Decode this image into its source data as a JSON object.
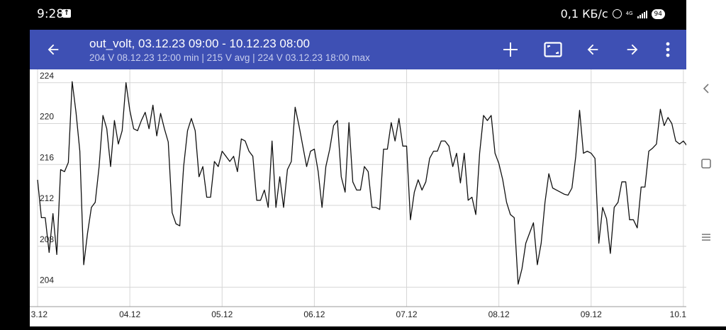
{
  "status_bar": {
    "time": "9:28",
    "network_speed": "0,1 КБ/с",
    "network_type": "4G",
    "battery": "94"
  },
  "toolbar": {
    "title": "out_volt, 03.12.23 09:00 - 10.12.23 08:00",
    "subtitle": "204 V 08.12.23 12:00 min | 215 V avg | 224 V 03.12.23 18:00 max",
    "icons": [
      "back-arrow-icon",
      "plus-icon",
      "fit-screen-icon",
      "arrow-left-icon",
      "arrow-right-icon",
      "more-vert-icon"
    ]
  },
  "chart_data": {
    "type": "line",
    "x_tick_labels": [
      "3.12",
      "04.12",
      "05.12",
      "06.12",
      "07.12",
      "08.12",
      "09.12",
      "10.1"
    ],
    "y_tick_labels": [
      "204",
      "208",
      "212",
      "216",
      "220",
      "224"
    ],
    "yticks": [
      204,
      208,
      212,
      216,
      220,
      224
    ],
    "ylim": [
      202.1,
      225.3
    ],
    "x_start_hour": 0,
    "x_end_hour": 168,
    "grid": true,
    "line_color": "#111111",
    "points": [
      [
        0,
        214.5
      ],
      [
        1,
        210.8
      ],
      [
        2,
        210.8
      ],
      [
        3,
        207.4
      ],
      [
        4,
        211.2
      ],
      [
        5,
        207.2
      ],
      [
        6,
        215.5
      ],
      [
        7,
        215.3
      ],
      [
        8,
        216.2
      ],
      [
        9,
        224.1
      ],
      [
        10,
        221.1
      ],
      [
        11,
        217.3
      ],
      [
        12,
        206.2
      ],
      [
        13,
        209.3
      ],
      [
        14,
        211.8
      ],
      [
        15,
        212.3
      ],
      [
        16,
        215.8
      ],
      [
        17,
        220.8
      ],
      [
        18,
        219.5
      ],
      [
        19,
        215.8
      ],
      [
        20,
        220.3
      ],
      [
        21,
        218.0
      ],
      [
        22,
        219.3
      ],
      [
        23,
        224.0
      ],
      [
        24,
        221.3
      ],
      [
        25,
        219.5
      ],
      [
        26,
        219.3
      ],
      [
        27,
        220.3
      ],
      [
        28,
        221.1
      ],
      [
        29,
        219.5
      ],
      [
        30,
        221.8
      ],
      [
        31,
        218.8
      ],
      [
        32,
        221.0
      ],
      [
        33,
        219.5
      ],
      [
        34,
        218.2
      ],
      [
        35,
        211.3
      ],
      [
        36,
        210.2
      ],
      [
        37,
        210.0
      ],
      [
        38,
        215.8
      ],
      [
        39,
        219.3
      ],
      [
        40,
        220.5
      ],
      [
        41,
        219.3
      ],
      [
        42,
        214.8
      ],
      [
        43,
        215.8
      ],
      [
        44,
        212.8
      ],
      [
        45,
        212.8
      ],
      [
        46,
        216.3
      ],
      [
        47,
        215.8
      ],
      [
        48,
        217.3
      ],
      [
        49,
        216.8
      ],
      [
        50,
        216.3
      ],
      [
        51,
        216.8
      ],
      [
        52,
        215.3
      ],
      [
        53,
        218.5
      ],
      [
        54,
        218.3
      ],
      [
        55,
        217.3
      ],
      [
        56,
        216.8
      ],
      [
        57,
        212.5
      ],
      [
        58,
        212.5
      ],
      [
        59,
        213.5
      ],
      [
        60,
        211.8
      ],
      [
        61,
        218.3
      ],
      [
        62,
        211.8
      ],
      [
        63,
        214.8
      ],
      [
        64,
        211.8
      ],
      [
        65,
        215.5
      ],
      [
        66,
        216.3
      ],
      [
        67,
        221.6
      ],
      [
        68,
        219.8
      ],
      [
        69,
        217.8
      ],
      [
        70,
        215.8
      ],
      [
        71,
        217.3
      ],
      [
        72,
        217.5
      ],
      [
        73,
        215.3
      ],
      [
        74,
        211.8
      ],
      [
        75,
        215.8
      ],
      [
        76,
        217.5
      ],
      [
        77,
        219.8
      ],
      [
        78,
        220.3
      ],
      [
        79,
        214.8
      ],
      [
        80,
        213.3
      ],
      [
        81,
        220.1
      ],
      [
        82,
        214.3
      ],
      [
        83,
        213.5
      ],
      [
        84,
        213.5
      ],
      [
        85,
        215.8
      ],
      [
        86,
        215.3
      ],
      [
        87,
        211.8
      ],
      [
        88,
        211.8
      ],
      [
        89,
        211.6
      ],
      [
        90,
        217.5
      ],
      [
        91,
        217.5
      ],
      [
        92,
        220.1
      ],
      [
        93,
        218.3
      ],
      [
        94,
        220.5
      ],
      [
        95,
        217.8
      ],
      [
        96,
        217.8
      ],
      [
        97,
        210.6
      ],
      [
        98,
        213.3
      ],
      [
        99,
        214.5
      ],
      [
        100,
        213.5
      ],
      [
        101,
        214.3
      ],
      [
        102,
        216.6
      ],
      [
        103,
        217.3
      ],
      [
        104,
        217.3
      ],
      [
        105,
        218.3
      ],
      [
        106,
        218.3
      ],
      [
        107,
        217.8
      ],
      [
        108,
        215.8
      ],
      [
        109,
        217.1
      ],
      [
        110,
        214.2
      ],
      [
        111,
        217.1
      ],
      [
        112,
        212.5
      ],
      [
        113,
        212.8
      ],
      [
        114,
        211.1
      ],
      [
        115,
        217.1
      ],
      [
        116,
        220.8
      ],
      [
        117,
        220.3
      ],
      [
        118,
        220.8
      ],
      [
        119,
        217.1
      ],
      [
        120,
        216.1
      ],
      [
        121,
        214.5
      ],
      [
        122,
        212.3
      ],
      [
        123,
        211.1
      ],
      [
        124,
        210.8
      ],
      [
        125,
        204.3
      ],
      [
        126,
        205.8
      ],
      [
        127,
        208.3
      ],
      [
        128,
        209.3
      ],
      [
        129,
        210.3
      ],
      [
        130,
        206.2
      ],
      [
        131,
        208.3
      ],
      [
        132,
        212.3
      ],
      [
        133,
        215.1
      ],
      [
        134,
        213.7
      ],
      [
        135,
        213.5
      ],
      [
        136,
        213.3
      ],
      [
        137,
        213.1
      ],
      [
        138,
        213.0
      ],
      [
        139,
        213.7
      ],
      [
        140,
        216.8
      ],
      [
        141,
        221.3
      ],
      [
        142,
        217.1
      ],
      [
        143,
        217.3
      ],
      [
        144,
        217.1
      ],
      [
        145,
        216.6
      ],
      [
        146,
        208.3
      ],
      [
        147,
        211.8
      ],
      [
        148,
        210.7
      ],
      [
        149,
        207.3
      ],
      [
        150,
        211.8
      ],
      [
        151,
        212.3
      ],
      [
        152,
        214.3
      ],
      [
        153,
        214.3
      ],
      [
        154,
        210.6
      ],
      [
        155,
        210.6
      ],
      [
        156,
        209.8
      ],
      [
        157,
        213.8
      ],
      [
        158,
        213.8
      ],
      [
        159,
        217.3
      ],
      [
        160,
        217.6
      ],
      [
        161,
        218.0
      ],
      [
        162,
        221.4
      ],
      [
        163,
        219.8
      ],
      [
        164,
        220.6
      ],
      [
        165,
        220.0
      ],
      [
        166,
        218.3
      ],
      [
        167,
        218.0
      ],
      [
        168,
        218.3
      ],
      [
        169,
        217.8
      ]
    ]
  }
}
